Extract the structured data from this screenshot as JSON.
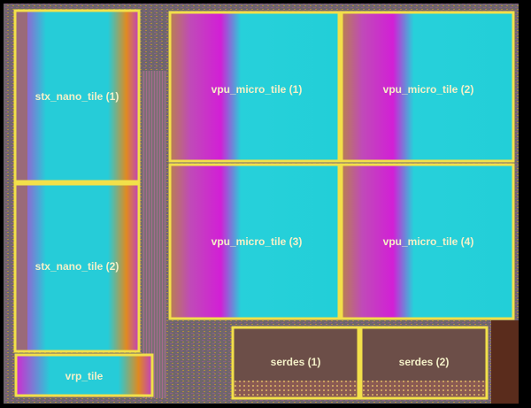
{
  "tiles": [
    {
      "label": "stx_nano_tile (1)"
    },
    {
      "label": "stx_nano_tile (2)"
    },
    {
      "label": "vrp_tile"
    },
    {
      "label": "vpu_micro_tile (1)"
    },
    {
      "label": "vpu_micro_tile (2)"
    },
    {
      "label": "vpu_micro_tile (3)"
    },
    {
      "label": "vpu_micro_tile (4)"
    },
    {
      "label": "serdes (1)"
    },
    {
      "label": "serdes (2)"
    }
  ]
}
